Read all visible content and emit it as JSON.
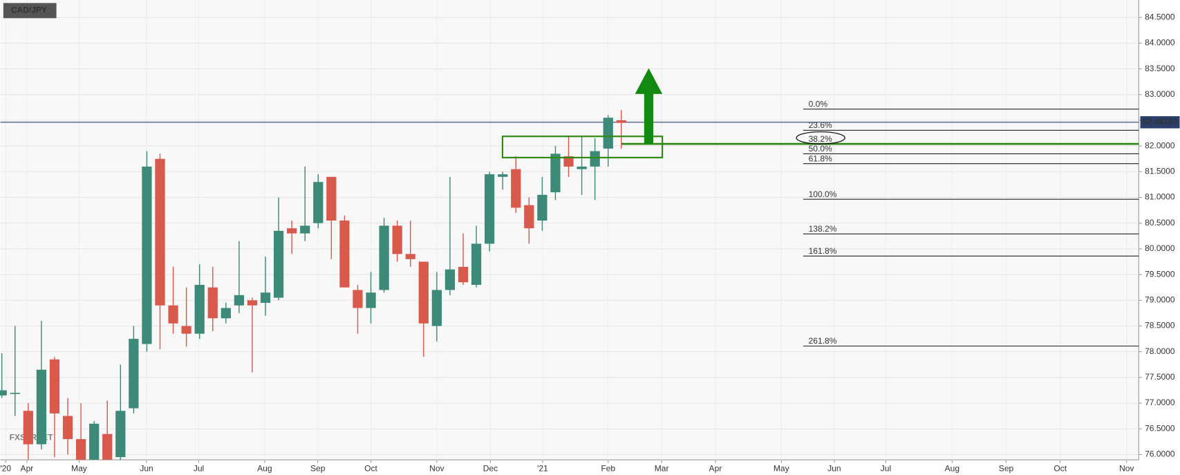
{
  "chart_data": {
    "type": "candlestick",
    "title": "CAD/JPY",
    "watermark": "FXSTREET",
    "x": [
      0,
      1,
      2,
      3,
      4,
      5,
      6,
      7,
      8,
      9,
      10,
      11,
      12,
      13,
      14,
      15,
      16,
      17,
      18,
      19,
      20,
      21,
      22,
      23,
      24,
      25,
      26,
      27,
      28,
      29,
      30,
      31,
      32,
      33,
      34,
      35,
      36,
      37,
      38,
      39,
      40,
      41,
      42,
      43,
      44,
      45,
      46,
      47
    ],
    "open": [
      77.15,
      77.2,
      76.85,
      76.2,
      77.85,
      76.75,
      76.3,
      75.9,
      76.4,
      75.95,
      76.9,
      78.15,
      81.75,
      78.9,
      78.5,
      78.35,
      79.25,
      78.65,
      78.9,
      79.0,
      78.95,
      79.05,
      80.4,
      80.3,
      80.5,
      81.4,
      80.55,
      79.2,
      78.85,
      79.2,
      80.45,
      79.9,
      79.75,
      78.5,
      79.2,
      79.65,
      79.3,
      80.1,
      81.4,
      81.55,
      80.85,
      80.55,
      81.1,
      81.8,
      81.55,
      81.6,
      81.95,
      82.5
    ],
    "high": [
      77.97,
      78.5,
      77.0,
      78.6,
      77.9,
      77.1,
      77.0,
      76.65,
      77.05,
      77.75,
      78.5,
      81.9,
      81.85,
      79.65,
      79.25,
      79.7,
      79.65,
      78.95,
      80.15,
      79.05,
      79.85,
      81.0,
      80.55,
      81.6,
      81.45,
      81.4,
      80.65,
      79.3,
      79.55,
      80.6,
      80.55,
      80.55,
      79.75,
      79.55,
      81.4,
      80.3,
      80.45,
      81.5,
      81.5,
      81.8,
      81.0,
      81.4,
      82.0,
      82.2,
      82.2,
      82.15,
      82.6,
      82.7
    ],
    "low": [
      77.1,
      76.75,
      75.9,
      76.1,
      75.95,
      76.0,
      75.9,
      75.9,
      75.9,
      75.9,
      76.8,
      78.0,
      78.05,
      78.35,
      78.1,
      78.25,
      78.4,
      78.55,
      78.75,
      77.6,
      78.7,
      79.0,
      79.9,
      80.15,
      80.4,
      79.8,
      79.25,
      78.35,
      78.55,
      79.15,
      79.75,
      79.65,
      77.9,
      78.2,
      79.1,
      79.3,
      79.25,
      79.95,
      81.15,
      80.7,
      80.1,
      80.35,
      80.95,
      81.4,
      81.05,
      80.95,
      81.6,
      81.95
    ],
    "close": [
      77.25,
      77.2,
      76.2,
      77.65,
      76.8,
      76.3,
      75.9,
      76.6,
      75.9,
      76.85,
      78.25,
      81.6,
      78.9,
      78.55,
      78.35,
      79.3,
      78.65,
      78.85,
      79.1,
      78.9,
      79.15,
      80.35,
      80.3,
      80.45,
      81.3,
      80.55,
      79.25,
      78.85,
      79.15,
      80.45,
      79.9,
      79.8,
      78.55,
      79.2,
      79.6,
      79.35,
      80.1,
      81.45,
      81.45,
      80.8,
      80.4,
      81.05,
      81.85,
      81.6,
      81.6,
      81.9,
      82.55,
      82.45
    ],
    "up_color": "#3d8a78",
    "down_color": "#d9594c",
    "xlim": [
      -0.115,
      86.26
    ],
    "xticks": [
      {
        "value": 0.29,
        "label": "'20"
      },
      {
        "value": 1.9,
        "label": "Apr"
      },
      {
        "value": 5.86,
        "label": "May"
      },
      {
        "value": 10.98,
        "label": "Jun"
      },
      {
        "value": 14.94,
        "label": "Jul"
      },
      {
        "value": 19.94,
        "label": "Aug"
      },
      {
        "value": 23.97,
        "label": "Sep"
      },
      {
        "value": 28.0,
        "label": "Oct"
      },
      {
        "value": 33.0,
        "label": "Nov"
      },
      {
        "value": 37.07,
        "label": "Dec"
      },
      {
        "value": 41.03,
        "label": "'21"
      },
      {
        "value": 46.0,
        "label": "Feb"
      },
      {
        "value": 50.06,
        "label": "Mar"
      },
      {
        "value": 54.14,
        "label": "Apr"
      },
      {
        "value": 59.14,
        "label": "May"
      },
      {
        "value": 63.16,
        "label": "Jun"
      },
      {
        "value": 67.07,
        "label": "Jul"
      },
      {
        "value": 72.1,
        "label": "Aug"
      },
      {
        "value": 76.2,
        "label": "Sep"
      },
      {
        "value": 80.3,
        "label": "Oct"
      },
      {
        "value": 85.34,
        "label": "Nov"
      }
    ],
    "ylim": [
      75.897,
      84.839
    ],
    "yticks": [
      {
        "value": 76,
        "label": "76.0000"
      },
      {
        "value": 76.5,
        "label": "76.5000"
      },
      {
        "value": 77,
        "label": "77.0000"
      },
      {
        "value": 77.5,
        "label": "77.5000"
      },
      {
        "value": 78,
        "label": "78.0000"
      },
      {
        "value": 78.5,
        "label": "78.5000"
      },
      {
        "value": 79,
        "label": "79.0000"
      },
      {
        "value": 79.5,
        "label": "79.5000"
      },
      {
        "value": 80,
        "label": "80.0000"
      },
      {
        "value": 80.5,
        "label": "80.5000"
      },
      {
        "value": 81,
        "label": "81.0000"
      },
      {
        "value": 81.5,
        "label": "81.5000"
      },
      {
        "value": 82,
        "label": "82.0000"
      },
      {
        "value": 82.5,
        "label": "82.5000"
      },
      {
        "value": 83,
        "label": "83.0000"
      },
      {
        "value": 83.5,
        "label": "83.5000"
      },
      {
        "value": 84,
        "label": "84.0000"
      },
      {
        "value": 84.5,
        "label": "84.5000"
      }
    ],
    "grid": true,
    "last_price": {
      "value": 82.4615,
      "label": "82.46150"
    },
    "fib_levels": [
      {
        "label": "0.0%",
        "value": 82.717
      },
      {
        "label": "23.6%",
        "value": 82.305
      },
      {
        "label": "38.2%",
        "value": 82.04
      },
      {
        "label": "50.0%",
        "value": 81.848
      },
      {
        "label": "61.8%",
        "value": 81.657
      },
      {
        "label": "100.0%",
        "value": 80.964
      },
      {
        "label": "138.2%",
        "value": 80.29
      },
      {
        "label": "161.8%",
        "value": 79.86
      },
      {
        "label": "261.8%",
        "value": 78.11
      }
    ]
  }
}
